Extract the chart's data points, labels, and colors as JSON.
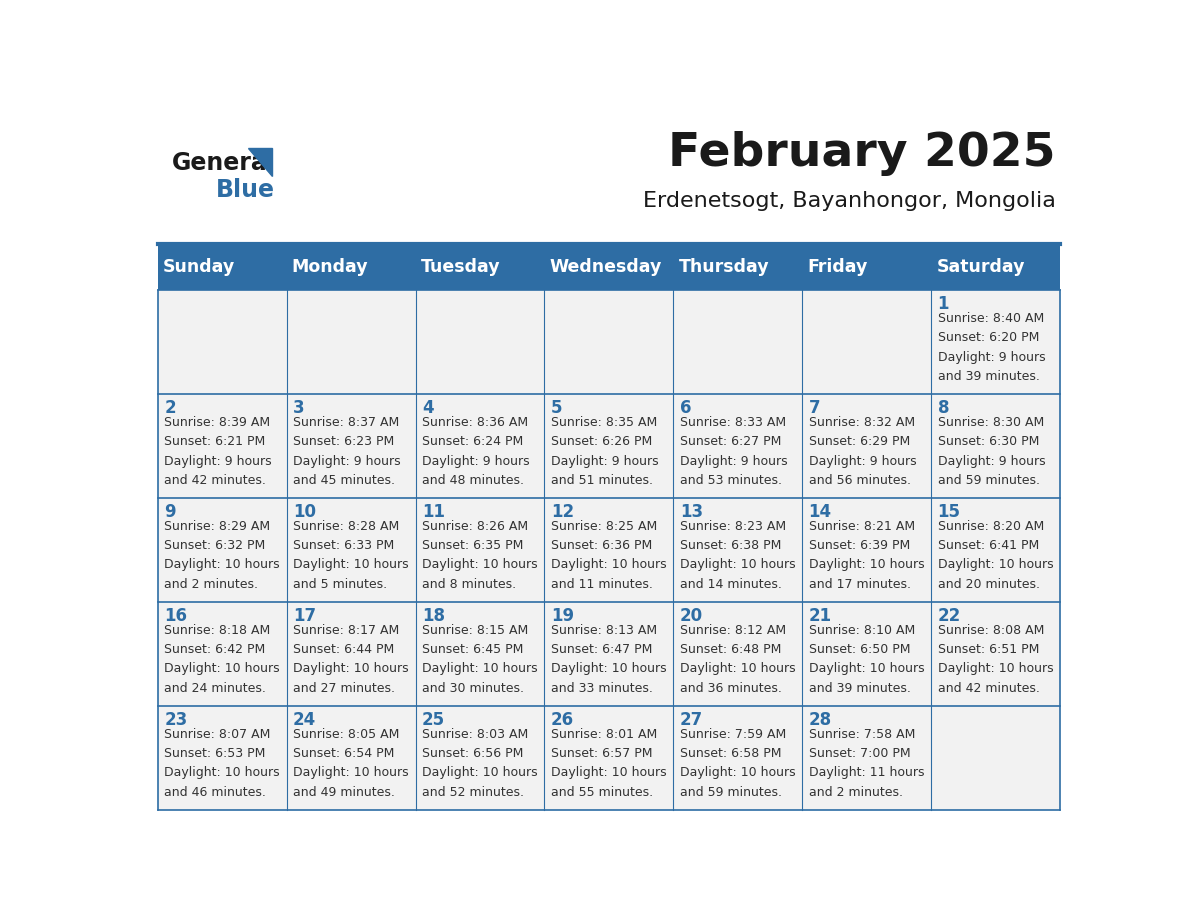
{
  "title": "February 2025",
  "subtitle": "Erdenetsogt, Bayanhongor, Mongolia",
  "header_bg": "#2E6DA4",
  "header_fg": "#FFFFFF",
  "cell_bg_light": "#F2F2F2",
  "border_color": "#2E6DA4",
  "text_color": "#333333",
  "day_number_color": "#2E6DA4",
  "day_headers": [
    "Sunday",
    "Monday",
    "Tuesday",
    "Wednesday",
    "Thursday",
    "Friday",
    "Saturday"
  ],
  "weeks": [
    [
      {
        "day": null,
        "sunrise": null,
        "sunset": null,
        "daylight": null
      },
      {
        "day": null,
        "sunrise": null,
        "sunset": null,
        "daylight": null
      },
      {
        "day": null,
        "sunrise": null,
        "sunset": null,
        "daylight": null
      },
      {
        "day": null,
        "sunrise": null,
        "sunset": null,
        "daylight": null
      },
      {
        "day": null,
        "sunrise": null,
        "sunset": null,
        "daylight": null
      },
      {
        "day": null,
        "sunrise": null,
        "sunset": null,
        "daylight": null
      },
      {
        "day": 1,
        "sunrise": "8:40 AM",
        "sunset": "6:20 PM",
        "daylight": "9 hours and 39 minutes."
      }
    ],
    [
      {
        "day": 2,
        "sunrise": "8:39 AM",
        "sunset": "6:21 PM",
        "daylight": "9 hours and 42 minutes."
      },
      {
        "day": 3,
        "sunrise": "8:37 AM",
        "sunset": "6:23 PM",
        "daylight": "9 hours and 45 minutes."
      },
      {
        "day": 4,
        "sunrise": "8:36 AM",
        "sunset": "6:24 PM",
        "daylight": "9 hours and 48 minutes."
      },
      {
        "day": 5,
        "sunrise": "8:35 AM",
        "sunset": "6:26 PM",
        "daylight": "9 hours and 51 minutes."
      },
      {
        "day": 6,
        "sunrise": "8:33 AM",
        "sunset": "6:27 PM",
        "daylight": "9 hours and 53 minutes."
      },
      {
        "day": 7,
        "sunrise": "8:32 AM",
        "sunset": "6:29 PM",
        "daylight": "9 hours and 56 minutes."
      },
      {
        "day": 8,
        "sunrise": "8:30 AM",
        "sunset": "6:30 PM",
        "daylight": "9 hours and 59 minutes."
      }
    ],
    [
      {
        "day": 9,
        "sunrise": "8:29 AM",
        "sunset": "6:32 PM",
        "daylight": "10 hours and 2 minutes."
      },
      {
        "day": 10,
        "sunrise": "8:28 AM",
        "sunset": "6:33 PM",
        "daylight": "10 hours and 5 minutes."
      },
      {
        "day": 11,
        "sunrise": "8:26 AM",
        "sunset": "6:35 PM",
        "daylight": "10 hours and 8 minutes."
      },
      {
        "day": 12,
        "sunrise": "8:25 AM",
        "sunset": "6:36 PM",
        "daylight": "10 hours and 11 minutes."
      },
      {
        "day": 13,
        "sunrise": "8:23 AM",
        "sunset": "6:38 PM",
        "daylight": "10 hours and 14 minutes."
      },
      {
        "day": 14,
        "sunrise": "8:21 AM",
        "sunset": "6:39 PM",
        "daylight": "10 hours and 17 minutes."
      },
      {
        "day": 15,
        "sunrise": "8:20 AM",
        "sunset": "6:41 PM",
        "daylight": "10 hours and 20 minutes."
      }
    ],
    [
      {
        "day": 16,
        "sunrise": "8:18 AM",
        "sunset": "6:42 PM",
        "daylight": "10 hours and 24 minutes."
      },
      {
        "day": 17,
        "sunrise": "8:17 AM",
        "sunset": "6:44 PM",
        "daylight": "10 hours and 27 minutes."
      },
      {
        "day": 18,
        "sunrise": "8:15 AM",
        "sunset": "6:45 PM",
        "daylight": "10 hours and 30 minutes."
      },
      {
        "day": 19,
        "sunrise": "8:13 AM",
        "sunset": "6:47 PM",
        "daylight": "10 hours and 33 minutes."
      },
      {
        "day": 20,
        "sunrise": "8:12 AM",
        "sunset": "6:48 PM",
        "daylight": "10 hours and 36 minutes."
      },
      {
        "day": 21,
        "sunrise": "8:10 AM",
        "sunset": "6:50 PM",
        "daylight": "10 hours and 39 minutes."
      },
      {
        "day": 22,
        "sunrise": "8:08 AM",
        "sunset": "6:51 PM",
        "daylight": "10 hours and 42 minutes."
      }
    ],
    [
      {
        "day": 23,
        "sunrise": "8:07 AM",
        "sunset": "6:53 PM",
        "daylight": "10 hours and 46 minutes."
      },
      {
        "day": 24,
        "sunrise": "8:05 AM",
        "sunset": "6:54 PM",
        "daylight": "10 hours and 49 minutes."
      },
      {
        "day": 25,
        "sunrise": "8:03 AM",
        "sunset": "6:56 PM",
        "daylight": "10 hours and 52 minutes."
      },
      {
        "day": 26,
        "sunrise": "8:01 AM",
        "sunset": "6:57 PM",
        "daylight": "10 hours and 55 minutes."
      },
      {
        "day": 27,
        "sunrise": "7:59 AM",
        "sunset": "6:58 PM",
        "daylight": "10 hours and 59 minutes."
      },
      {
        "day": 28,
        "sunrise": "7:58 AM",
        "sunset": "7:00 PM",
        "daylight": "11 hours and 2 minutes."
      },
      {
        "day": null,
        "sunrise": null,
        "sunset": null,
        "daylight": null
      }
    ]
  ]
}
